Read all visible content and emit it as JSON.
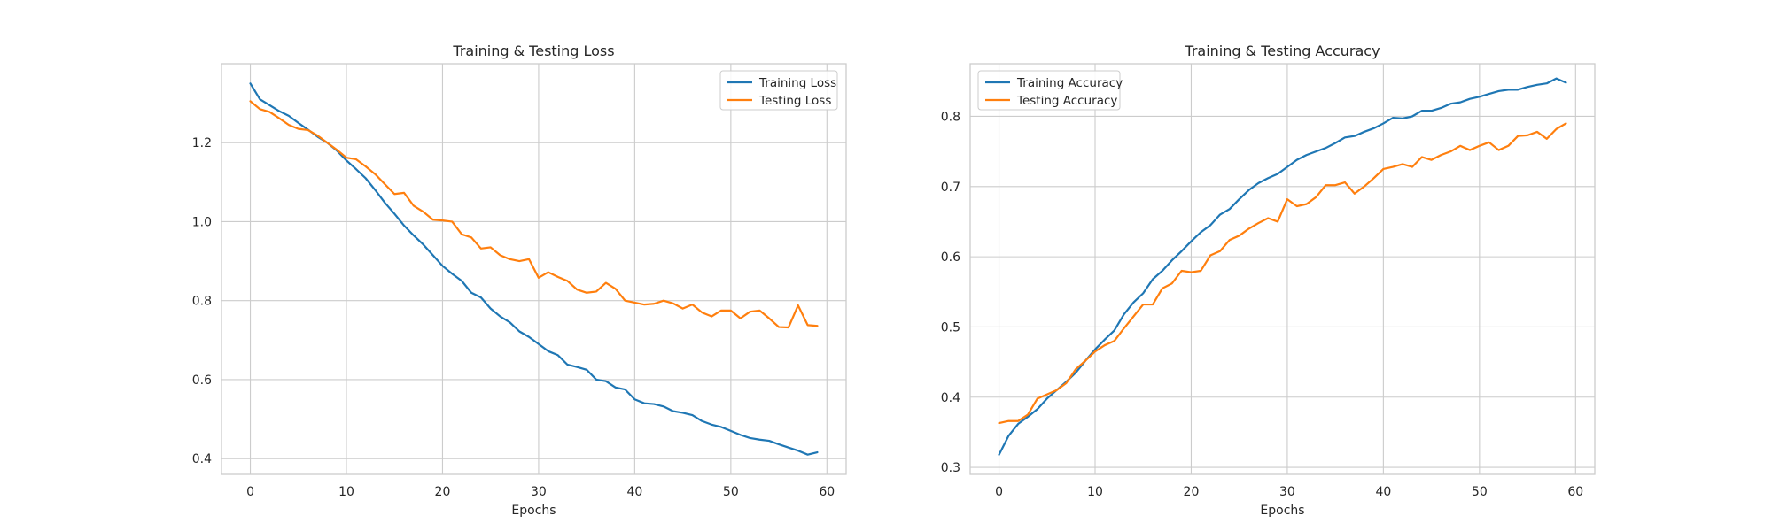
{
  "chart_data": [
    {
      "type": "line",
      "title": "Training & Testing Loss",
      "xlabel": "Epochs",
      "ylabel": "",
      "xlim": [
        -3,
        62
      ],
      "ylim": [
        0.36,
        1.4
      ],
      "xticks": [
        0,
        10,
        20,
        30,
        40,
        50,
        60
      ],
      "yticks": [
        0.4,
        0.6,
        0.8,
        1.0,
        1.2
      ],
      "ytick_decimals": 1,
      "grid": true,
      "legend_position": "top-right",
      "x": [
        0,
        1,
        2,
        3,
        4,
        5,
        6,
        7,
        8,
        9,
        10,
        11,
        12,
        13,
        14,
        15,
        16,
        17,
        18,
        19,
        20,
        21,
        22,
        23,
        24,
        25,
        26,
        27,
        28,
        29,
        30,
        31,
        32,
        33,
        34,
        35,
        36,
        37,
        38,
        39,
        40,
        41,
        42,
        43,
        44,
        45,
        46,
        47,
        48,
        49,
        50,
        51,
        52,
        53,
        54,
        55,
        56,
        57,
        58,
        59
      ],
      "series": [
        {
          "name": "Training Loss",
          "color": "#1f77b4",
          "values": [
            1.35,
            1.31,
            1.295,
            1.28,
            1.268,
            1.25,
            1.233,
            1.215,
            1.2,
            1.18,
            1.155,
            1.133,
            1.11,
            1.08,
            1.048,
            1.02,
            0.99,
            0.965,
            0.942,
            0.915,
            0.888,
            0.868,
            0.85,
            0.82,
            0.808,
            0.78,
            0.76,
            0.745,
            0.722,
            0.708,
            0.69,
            0.672,
            0.662,
            0.638,
            0.632,
            0.625,
            0.6,
            0.596,
            0.58,
            0.575,
            0.55,
            0.54,
            0.538,
            0.532,
            0.52,
            0.516,
            0.51,
            0.495,
            0.486,
            0.48,
            0.47,
            0.46,
            0.452,
            0.448,
            0.445,
            0.436,
            0.428,
            0.42,
            0.41,
            0.416
          ]
        },
        {
          "name": "Testing Loss",
          "color": "#ff7f0e",
          "values": [
            1.305,
            1.285,
            1.278,
            1.262,
            1.245,
            1.235,
            1.232,
            1.218,
            1.2,
            1.182,
            1.162,
            1.158,
            1.14,
            1.12,
            1.095,
            1.07,
            1.073,
            1.04,
            1.025,
            1.005,
            1.003,
            1.0,
            0.968,
            0.96,
            0.932,
            0.935,
            0.915,
            0.905,
            0.9,
            0.905,
            0.858,
            0.872,
            0.86,
            0.85,
            0.828,
            0.82,
            0.823,
            0.845,
            0.83,
            0.8,
            0.795,
            0.79,
            0.792,
            0.8,
            0.793,
            0.78,
            0.79,
            0.77,
            0.76,
            0.775,
            0.775,
            0.755,
            0.772,
            0.775,
            0.755,
            0.733,
            0.732,
            0.788,
            0.738,
            0.736
          ]
        }
      ]
    },
    {
      "type": "line",
      "title": "Training & Testing Accuracy",
      "xlabel": "Epochs",
      "ylabel": "",
      "xlim": [
        -3,
        62
      ],
      "ylim": [
        0.29,
        0.875
      ],
      "xticks": [
        0,
        10,
        20,
        30,
        40,
        50,
        60
      ],
      "yticks": [
        0.3,
        0.4,
        0.5,
        0.6,
        0.7,
        0.8
      ],
      "ytick_decimals": 1,
      "grid": true,
      "legend_position": "top-left",
      "x": [
        0,
        1,
        2,
        3,
        4,
        5,
        6,
        7,
        8,
        9,
        10,
        11,
        12,
        13,
        14,
        15,
        16,
        17,
        18,
        19,
        20,
        21,
        22,
        23,
        24,
        25,
        26,
        27,
        28,
        29,
        30,
        31,
        32,
        33,
        34,
        35,
        36,
        37,
        38,
        39,
        40,
        41,
        42,
        43,
        44,
        45,
        46,
        47,
        48,
        49,
        50,
        51,
        52,
        53,
        54,
        55,
        56,
        57,
        58,
        59
      ],
      "series": [
        {
          "name": "Training Accuracy",
          "color": "#1f77b4",
          "values": [
            0.318,
            0.345,
            0.362,
            0.372,
            0.383,
            0.398,
            0.41,
            0.422,
            0.435,
            0.452,
            0.468,
            0.482,
            0.495,
            0.518,
            0.535,
            0.548,
            0.568,
            0.58,
            0.595,
            0.608,
            0.622,
            0.635,
            0.645,
            0.66,
            0.668,
            0.682,
            0.695,
            0.705,
            0.712,
            0.718,
            0.728,
            0.738,
            0.745,
            0.75,
            0.755,
            0.762,
            0.77,
            0.772,
            0.778,
            0.783,
            0.79,
            0.798,
            0.797,
            0.8,
            0.808,
            0.808,
            0.812,
            0.818,
            0.82,
            0.825,
            0.828,
            0.832,
            0.836,
            0.838,
            0.838,
            0.842,
            0.845,
            0.847,
            0.854,
            0.848
          ]
        },
        {
          "name": "Testing Accuracy",
          "color": "#ff7f0e",
          "values": [
            0.363,
            0.366,
            0.366,
            0.375,
            0.398,
            0.404,
            0.41,
            0.42,
            0.44,
            0.452,
            0.465,
            0.474,
            0.48,
            0.498,
            0.515,
            0.532,
            0.532,
            0.555,
            0.562,
            0.58,
            0.578,
            0.58,
            0.602,
            0.608,
            0.624,
            0.63,
            0.64,
            0.648,
            0.655,
            0.65,
            0.682,
            0.672,
            0.675,
            0.685,
            0.702,
            0.702,
            0.706,
            0.69,
            0.7,
            0.712,
            0.725,
            0.728,
            0.732,
            0.728,
            0.742,
            0.738,
            0.745,
            0.75,
            0.758,
            0.752,
            0.758,
            0.763,
            0.752,
            0.758,
            0.772,
            0.773,
            0.778,
            0.768,
            0.782,
            0.79
          ]
        }
      ]
    }
  ]
}
